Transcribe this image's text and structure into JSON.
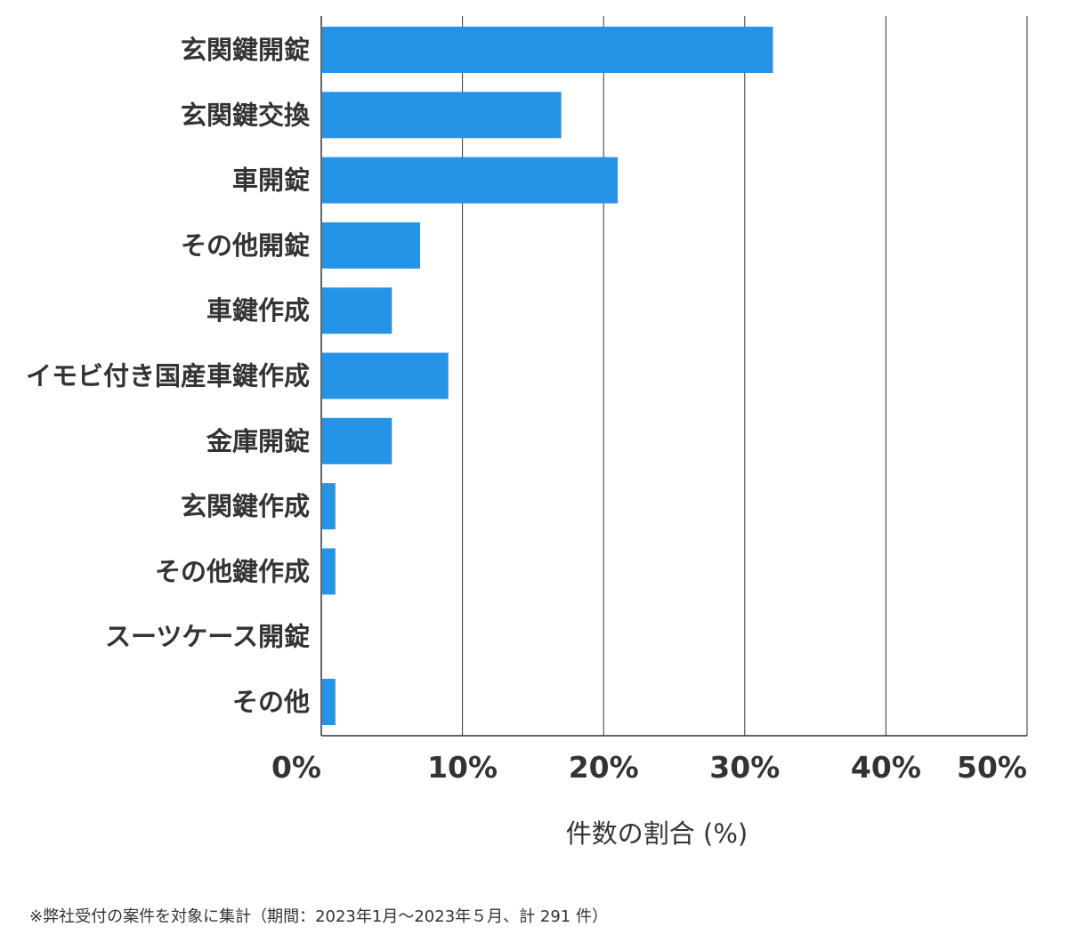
{
  "chart_data": {
    "type": "bar",
    "orientation": "horizontal",
    "categories": [
      "玄関鍵開錠",
      "玄関鍵交換",
      "車開錠",
      "その他開錠",
      "車鍵作成",
      "イモビ付き国産車鍵作成",
      "金庫開錠",
      "玄関鍵作成",
      "その他鍵作成",
      "スーツケース開錠",
      "その他"
    ],
    "values": [
      32.0,
      17.0,
      21.0,
      7.0,
      5.0,
      9.0,
      5.0,
      1.0,
      1.0,
      0,
      1.0
    ],
    "xlabel": "件数の割合 (%)",
    "ylabel": "",
    "xlim": [
      0,
      50
    ],
    "ticks": [
      "0%",
      "10%",
      "20%",
      "30%",
      "40%",
      "50%"
    ],
    "grid": true,
    "bar_color": "#2593e6",
    "grid_color": "#333333"
  },
  "footnote": "※弊社受付の案件を対象に集計（期間：2023年1月～2023年５月、計 291 件）"
}
